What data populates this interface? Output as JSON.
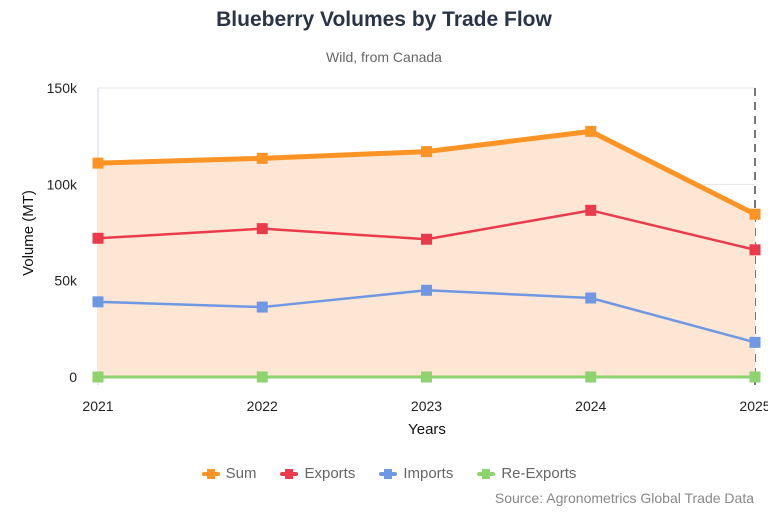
{
  "chart_data": {
    "type": "line",
    "title": "Blueberry Volumes by Trade Flow",
    "subtitle": "Wild, from Canada",
    "xlabel": "Years",
    "ylabel": "Volume (MT)",
    "categories": [
      "2021",
      "2022",
      "2023",
      "2024",
      "2025"
    ],
    "ylim": [
      0,
      150000
    ],
    "yticks": [
      0,
      50000,
      100000,
      150000
    ],
    "ytick_labels": [
      "0",
      "50k",
      "100k",
      "150k"
    ],
    "grid": true,
    "legend_position": "bottom",
    "series": [
      {
        "name": "Sum",
        "color": "#fb9425",
        "filled": true,
        "fill_color": "#fde6d3",
        "values": [
          111000,
          113500,
          117000,
          127500,
          84500
        ]
      },
      {
        "name": "Exports",
        "color": "#eb3a4c",
        "filled": false,
        "values": [
          72000,
          77000,
          71500,
          86500,
          66000
        ]
      },
      {
        "name": "Imports",
        "color": "#6f98e4",
        "filled": false,
        "values": [
          39000,
          36300,
          45000,
          41000,
          18000
        ]
      },
      {
        "name": "Re-Exports",
        "color": "#8dd36e",
        "filled": false,
        "values": [
          0,
          0,
          0,
          0,
          0
        ]
      }
    ],
    "annotations": [
      "2025 marked with dashed vertical line (partial year)"
    ],
    "source": "Source: Agronometrics Global Trade Data"
  }
}
